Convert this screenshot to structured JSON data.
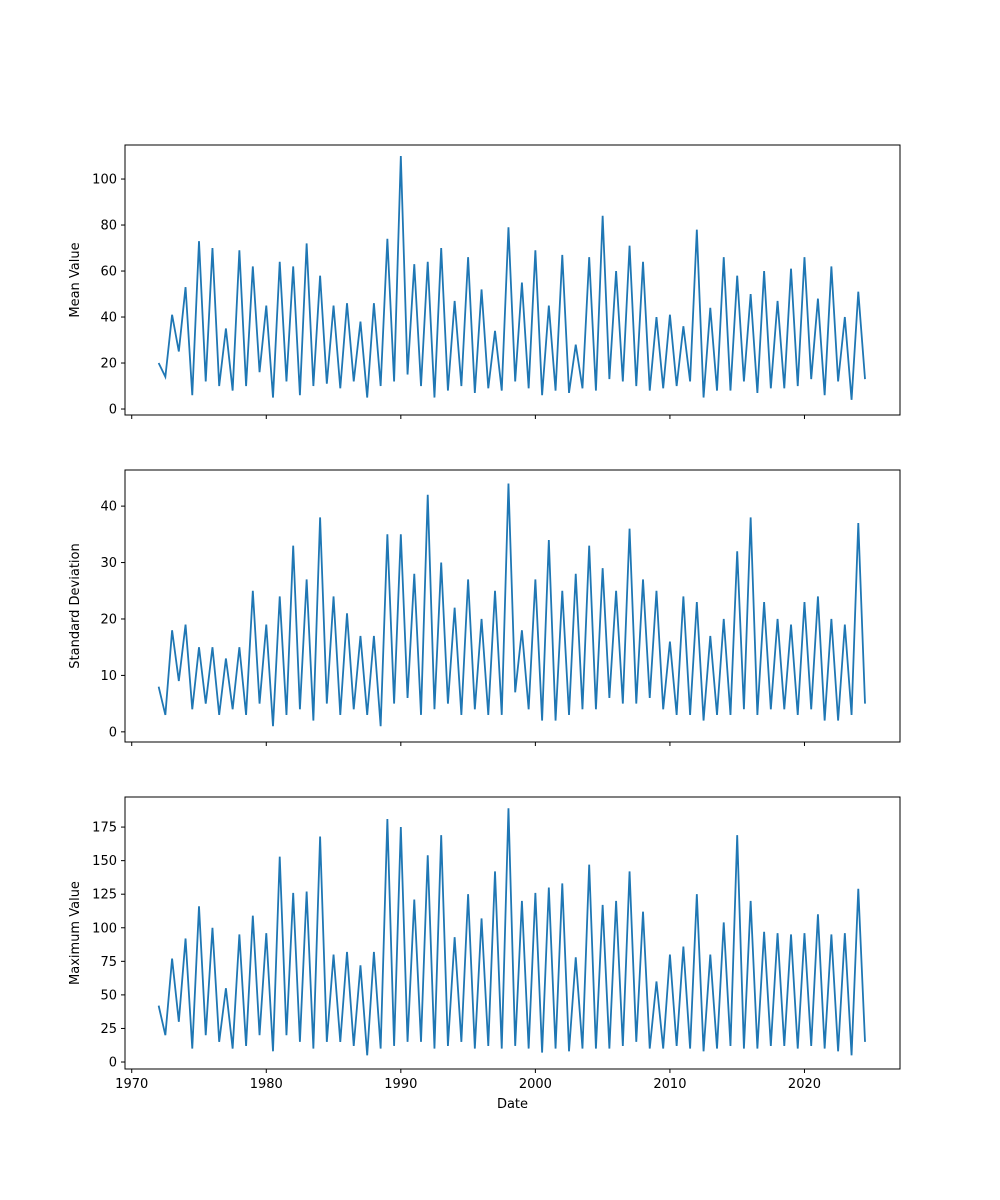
{
  "chart_data": {
    "type": "line",
    "xlabel": "Date",
    "xlim": [
      1969.5,
      2027.1
    ],
    "xticks": [
      1970,
      1980,
      1990,
      2000,
      2010,
      2020
    ],
    "x": [
      1972,
      1972.5,
      1973,
      1973.5,
      1974,
      1974.5,
      1975,
      1975.5,
      1976,
      1976.5,
      1977,
      1977.5,
      1978,
      1978.5,
      1979,
      1979.5,
      1980,
      1980.5,
      1981,
      1981.5,
      1982,
      1982.5,
      1983,
      1983.5,
      1984,
      1984.5,
      1985,
      1985.5,
      1986,
      1986.5,
      1987,
      1987.5,
      1988,
      1988.5,
      1989,
      1989.5,
      1990,
      1990.5,
      1991,
      1991.5,
      1992,
      1992.5,
      1993,
      1993.5,
      1994,
      1994.5,
      1995,
      1995.5,
      1996,
      1996.5,
      1997,
      1997.5,
      1998,
      1998.5,
      1999,
      1999.5,
      2000,
      2000.5,
      2001,
      2001.5,
      2002,
      2002.5,
      2003,
      2003.5,
      2004,
      2004.5,
      2005,
      2005.5,
      2006,
      2006.5,
      2007,
      2007.5,
      2008,
      2008.5,
      2009,
      2009.5,
      2010,
      2010.5,
      2011,
      2011.5,
      2012,
      2012.5,
      2013,
      2013.5,
      2014,
      2014.5,
      2015,
      2015.5,
      2016,
      2016.5,
      2017,
      2017.5,
      2018,
      2018.5,
      2019,
      2019.5,
      2020,
      2020.5,
      2021,
      2021.5,
      2022,
      2022.5,
      2023,
      2023.5,
      2024,
      2024.5
    ],
    "panels": [
      {
        "ylabel": "Mean Value",
        "ylim": [
          -2.6,
          114.8
        ],
        "yticks": [
          0,
          20,
          40,
          60,
          80,
          100
        ],
        "series": [
          {
            "color": "#1f77b4",
            "values": [
              20,
              14,
              41,
              25,
              53,
              6,
              73,
              12,
              70,
              10,
              35,
              8,
              69,
              10,
              62,
              16,
              45,
              5,
              64,
              12,
              62,
              6,
              72,
              10,
              58,
              11,
              45,
              9,
              46,
              12,
              38,
              5,
              46,
              10,
              74,
              12,
              110,
              15,
              63,
              10,
              64,
              5,
              70,
              8,
              47,
              10,
              66,
              7,
              52,
              9,
              34,
              8,
              79,
              12,
              55,
              9,
              69,
              6,
              45,
              8,
              67,
              7,
              28,
              9,
              66,
              8,
              84,
              13,
              60,
              12,
              71,
              10,
              64,
              8,
              40,
              9,
              41,
              10,
              36,
              12,
              78,
              5,
              44,
              8,
              66,
              8,
              58,
              12,
              50,
              7,
              60,
              9,
              47,
              9,
              61,
              10,
              66,
              13,
              48,
              6,
              62,
              12,
              40,
              4,
              51,
              13
            ]
          }
        ]
      },
      {
        "ylabel": "Standard Deviation",
        "ylim": [
          -1.8,
          46.4
        ],
        "yticks": [
          0,
          10,
          20,
          30,
          40
        ],
        "series": [
          {
            "color": "#1f77b4",
            "values": [
              8,
              3,
              18,
              9,
              19,
              4,
              15,
              5,
              15,
              3,
              13,
              4,
              15,
              3,
              25,
              5,
              19,
              1,
              24,
              3,
              33,
              4,
              27,
              2,
              38,
              5,
              24,
              3,
              21,
              4,
              17,
              3,
              17,
              1,
              35,
              5,
              35,
              6,
              28,
              3,
              42,
              4,
              30,
              5,
              22,
              3,
              27,
              4,
              20,
              3,
              25,
              3,
              44,
              7,
              18,
              4,
              27,
              2,
              34,
              2,
              25,
              3,
              28,
              4,
              33,
              4,
              29,
              6,
              25,
              5,
              36,
              5,
              27,
              6,
              25,
              4,
              16,
              3,
              24,
              3,
              23,
              2,
              17,
              3,
              20,
              3,
              32,
              4,
              38,
              3,
              23,
              4,
              20,
              4,
              19,
              3,
              23,
              4,
              24,
              2,
              20,
              2,
              19,
              3,
              37,
              5
            ]
          }
        ]
      },
      {
        "ylabel": "Maximum Value",
        "ylim": [
          -5.2,
          197.4
        ],
        "yticks": [
          0,
          25,
          50,
          75,
          100,
          125,
          150,
          175
        ],
        "series": [
          {
            "color": "#1f77b4",
            "values": [
              42,
              20,
              77,
              30,
              92,
              10,
              116,
              20,
              100,
              15,
              55,
              10,
              95,
              12,
              109,
              20,
              96,
              8,
              153,
              20,
              126,
              15,
              127,
              10,
              168,
              15,
              80,
              15,
              82,
              12,
              72,
              5,
              82,
              10,
              181,
              12,
              175,
              15,
              121,
              15,
              154,
              10,
              169,
              12,
              93,
              15,
              125,
              10,
              107,
              12,
              142,
              10,
              189,
              12,
              120,
              10,
              126,
              7,
              130,
              10,
              133,
              8,
              78,
              10,
              147,
              10,
              117,
              10,
              120,
              12,
              142,
              15,
              112,
              10,
              60,
              10,
              80,
              12,
              86,
              10,
              125,
              8,
              80,
              10,
              104,
              12,
              169,
              10,
              120,
              10,
              97,
              12,
              96,
              12,
              95,
              10,
              96,
              12,
              110,
              10,
              95,
              8,
              96,
              5,
              129,
              15
            ]
          }
        ]
      }
    ]
  }
}
